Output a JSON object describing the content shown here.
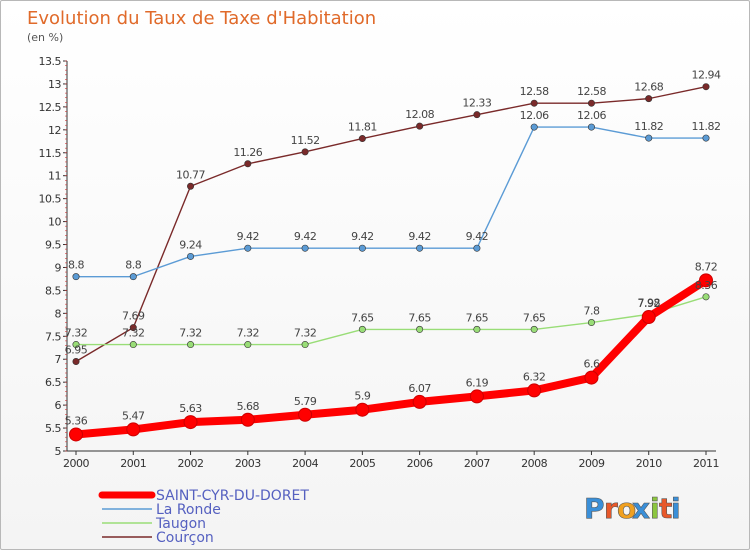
{
  "chart_data": {
    "type": "line",
    "title": "Evolution du Taux de Taxe d'Habitation",
    "unit_label": "(en %)",
    "x": [
      "2000",
      "2001",
      "2002",
      "2003",
      "2004",
      "2005",
      "2006",
      "2007",
      "2008",
      "2009",
      "2010",
      "2011"
    ],
    "ylim": [
      5,
      13.5
    ],
    "yticks": [
      "5",
      "5.5",
      "6",
      "6.5",
      "7",
      "7.5",
      "8",
      "8.5",
      "9",
      "9.5",
      "10",
      "10.5",
      "11",
      "11.5",
      "12",
      "12.5",
      "13",
      "13.5"
    ],
    "grid": false,
    "legend_position": "bottom-left",
    "series": [
      {
        "name": "SAINT-CYR-DU-DORET",
        "color": "#ff0000",
        "values": [
          5.36,
          5.47,
          5.63,
          5.68,
          5.79,
          5.9,
          6.07,
          6.19,
          6.32,
          6.6,
          7.92,
          8.72
        ],
        "labels": [
          "5.36",
          "5.47",
          "5.63",
          "5.68",
          "5.79",
          "5.9",
          "6.07",
          "6.19",
          "6.32",
          "6.6",
          "7.92",
          "8.72"
        ]
      },
      {
        "name": "La Ronde",
        "color": "#5b9bd5",
        "values": [
          8.8,
          8.8,
          9.24,
          9.42,
          9.42,
          9.42,
          9.42,
          9.42,
          12.06,
          12.06,
          11.82,
          11.82
        ],
        "labels": [
          "8.8",
          "8.8",
          "9.24",
          "9.42",
          "9.42",
          "9.42",
          "9.42",
          "9.42",
          "12.06",
          "12.06",
          "11.82",
          "11.82"
        ]
      },
      {
        "name": "Taugon",
        "color": "#99dd77",
        "values": [
          7.32,
          7.32,
          7.32,
          7.32,
          7.32,
          7.65,
          7.65,
          7.65,
          7.65,
          7.8,
          7.98,
          8.36
        ],
        "labels": [
          "7.32",
          "7.32",
          "7.32",
          "7.32",
          "7.32",
          "7.65",
          "7.65",
          "7.65",
          "7.65",
          "7.8",
          "7.98",
          "8.36"
        ]
      },
      {
        "name": "Courçon",
        "color": "#7a2a2a",
        "values": [
          6.95,
          7.69,
          10.77,
          11.26,
          11.52,
          11.81,
          12.08,
          12.33,
          12.58,
          12.58,
          12.68,
          12.94
        ],
        "labels": [
          "6.95",
          "7.69",
          "10.77",
          "11.26",
          "11.52",
          "11.81",
          "12.08",
          "12.33",
          "12.58",
          "12.58",
          "12.68",
          "12.94"
        ]
      }
    ]
  },
  "brand": {
    "letters": [
      "P",
      "r",
      "o",
      "x",
      "i",
      "t",
      "i"
    ],
    "colors": [
      "#3a8fd8",
      "#e8582a",
      "#f0a020",
      "#3a8fd8",
      "#8cc63f",
      "#e8582a",
      "#3a8fd8"
    ]
  }
}
